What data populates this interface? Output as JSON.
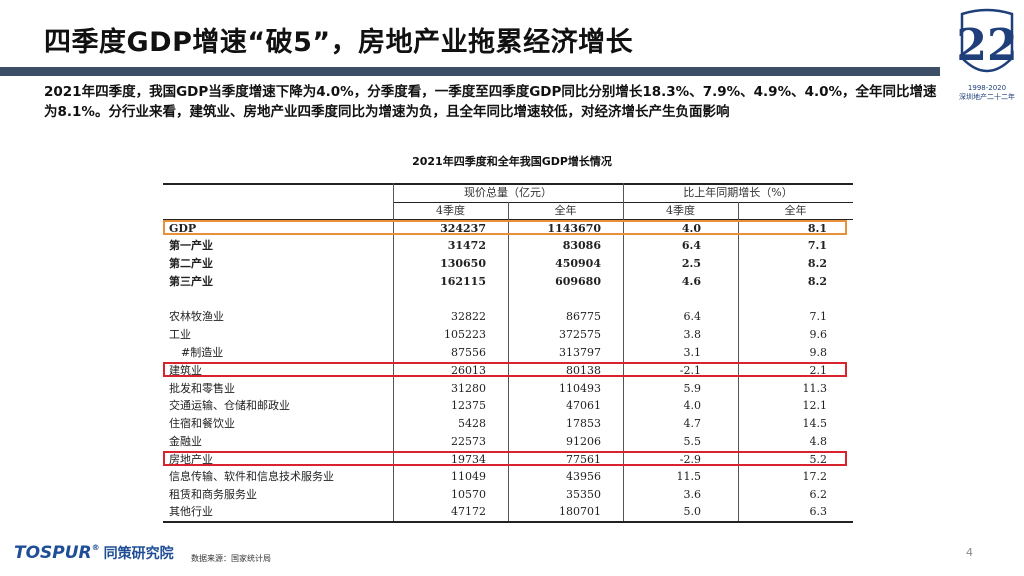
{
  "slide": {
    "title": "四季度GDP增速“破5”，房地产业拖累经济增长",
    "summary": "2021年四季度，我国GDP当季度增速下降为4.0%，分季度看，一季度至四季度GDP同比分别增长18.3%、7.9%、4.9%、4.0%，全年同比增速为8.1%。分行业来看，建筑业、房地产业四季度同比为增速为负，且全年同比增速较低，对经济增长产生负面影响",
    "page_number": "4"
  },
  "logo": {
    "number": "22",
    "years": "1998-2020",
    "caption": "深圳地产二十二年"
  },
  "table": {
    "title": "2021年四季度和全年我国GDP增长情况",
    "group_headers": [
      "现价总量（亿元）",
      "比上年同期增长（%）"
    ],
    "sub_headers": [
      "4季度",
      "全年",
      "4季度",
      "全年"
    ],
    "rows": [
      {
        "name": "GDP",
        "values": [
          "324237",
          "1143670",
          "4.0",
          "8.1"
        ]
      },
      {
        "name": "第一产业",
        "values": [
          "31472",
          "83086",
          "6.4",
          "7.1"
        ]
      },
      {
        "name": "第二产业",
        "values": [
          "130650",
          "450904",
          "2.5",
          "8.2"
        ]
      },
      {
        "name": "第三产业",
        "values": [
          "162115",
          "609680",
          "4.6",
          "8.2"
        ]
      },
      {
        "name": "农林牧渔业",
        "values": [
          "32822",
          "86775",
          "6.4",
          "7.1"
        ]
      },
      {
        "name": "工业",
        "values": [
          "105223",
          "372575",
          "3.8",
          "9.6"
        ]
      },
      {
        "name": "#制造业",
        "values": [
          "87556",
          "313797",
          "3.1",
          "9.8"
        ]
      },
      {
        "name": "建筑业",
        "values": [
          "26013",
          "80138",
          "-2.1",
          "2.1"
        ]
      },
      {
        "name": "批发和零售业",
        "values": [
          "31280",
          "110493",
          "5.9",
          "11.3"
        ]
      },
      {
        "name": "交通运输、仓储和邮政业",
        "values": [
          "12375",
          "47061",
          "4.0",
          "12.1"
        ]
      },
      {
        "name": "住宿和餐饮业",
        "values": [
          "5428",
          "17853",
          "4.7",
          "14.5"
        ]
      },
      {
        "name": "金融业",
        "values": [
          "22573",
          "91206",
          "5.5",
          "4.8"
        ]
      },
      {
        "name": "房地产业",
        "values": [
          "19734",
          "77561",
          "-2.9",
          "5.2"
        ]
      },
      {
        "name": "信息传输、软件和信息技术服务业",
        "values": [
          "11049",
          "43956",
          "11.5",
          "17.2"
        ]
      },
      {
        "name": "租赁和商务服务业",
        "values": [
          "10570",
          "35350",
          "3.6",
          "6.2"
        ]
      },
      {
        "name": "其他行业",
        "values": [
          "47172",
          "180701",
          "5.0",
          "6.3"
        ]
      }
    ],
    "highlight_colors": {
      "gdp_row": "#e8913a",
      "sector_rows": "#d9232d"
    }
  },
  "footer": {
    "brand": "TOSPUR",
    "brand_cn": "同策研究院",
    "source": "数据来源：国家统计局"
  },
  "colors": {
    "title_bar": "#3d4f66",
    "brand_blue": "#1f4e96"
  }
}
